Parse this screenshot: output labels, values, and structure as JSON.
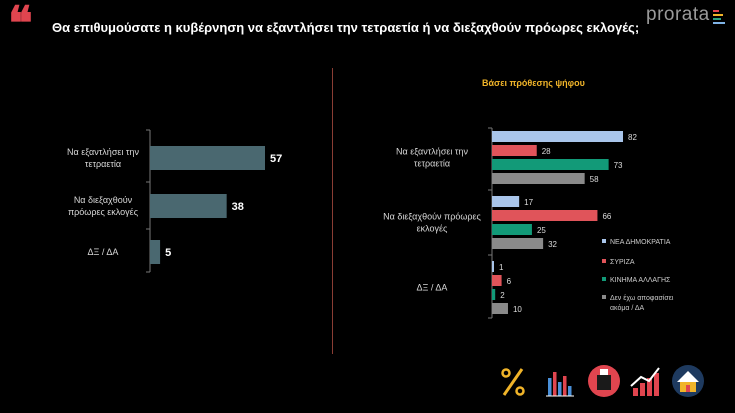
{
  "header": {
    "quote_glyph": "❝",
    "title": "Θα επιθυμούσατε η κυβέρνηση να εξαντλήσει την τετραετία ή να διεξαχθούν πρόωρες  εκλογές;",
    "brand": "prorata",
    "brand_colors": [
      "#e0454f",
      "#f0b429",
      "#2aa37f",
      "#7fb3e6"
    ]
  },
  "subtitle": "Βάσει πρόθεσης ψήφου",
  "chart_data": [
    {
      "type": "bar",
      "orientation": "horizontal",
      "categories": [
        "Να εξαντλήσει την τετραετία",
        "Να διεξαχθούν πρόωρες εκλογές",
        "ΔΞ / ΔΑ"
      ],
      "category_lines": [
        [
          "Να εξαντλήσει την",
          "τετραετία"
        ],
        [
          "Να διεξαχθούν",
          "πρόωρες εκλογές"
        ],
        [
          "ΔΞ / ΔΑ"
        ]
      ],
      "values": [
        57,
        38,
        5
      ],
      "color": "#4a6870",
      "value_color": "#ffffff"
    },
    {
      "type": "bar",
      "orientation": "horizontal",
      "title": "Βάσει πρόθεσης ψήφου",
      "categories": [
        "Να εξαντλήσει την τετραετία",
        "Να διεξαχθούν πρόωρες εκλογές",
        "ΔΞ / ΔΑ"
      ],
      "category_lines": [
        [
          "Να εξαντλήσει την",
          "τετραετία"
        ],
        [
          "Να διεξαχθούν πρόωρες",
          "εκλογές"
        ],
        [
          "ΔΞ / ΔΑ"
        ]
      ],
      "series": [
        {
          "name": "ΝΕΑ ΔΗΜΟΚΡΑΤΙΑ",
          "values": [
            82,
            17,
            1
          ],
          "color": "#a9c5ea"
        },
        {
          "name": "ΣΥΡΙΖΑ",
          "values": [
            28,
            66,
            6
          ],
          "color": "#e0545a"
        },
        {
          "name": "ΚΙΝΗΜΑ ΑΛΛΑΓΗΣ",
          "values": [
            73,
            25,
            2
          ],
          "color": "#129a78"
        },
        {
          "name": "Δεν έχω αποφασίσει ακόμα / ΔΑ",
          "name_lines": [
            "Δεν έχω αποφασίσει",
            "ακόμα / ΔΑ"
          ],
          "values": [
            58,
            32,
            10
          ],
          "color": "#8a8a8a"
        }
      ],
      "legend_position": "right"
    }
  ],
  "footer_icons": [
    {
      "name": "percent-icon",
      "color": "#f0b429"
    },
    {
      "name": "bar-chart-icon",
      "color": "#4a90d9"
    },
    {
      "name": "ballot-box-icon",
      "color": "#e0454f"
    },
    {
      "name": "trend-up-icon",
      "color": "#ffffff"
    },
    {
      "name": "house-icon",
      "color": "#4a90d9"
    }
  ]
}
